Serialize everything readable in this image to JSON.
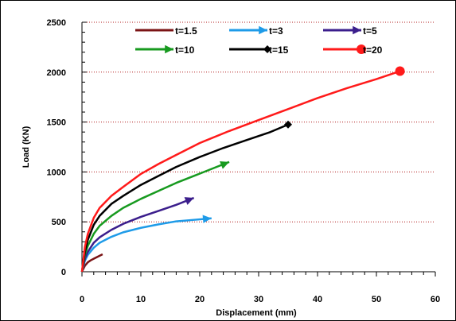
{
  "chart_data": {
    "type": "line",
    "title": "",
    "xlabel": "Displacement (mm)",
    "ylabel": "Load (KN)",
    "xlim": [
      0,
      60
    ],
    "ylim": [
      0,
      2500
    ],
    "x_ticks": [
      "0",
      "10",
      "20",
      "30",
      "40",
      "50",
      "60"
    ],
    "y_ticks": [
      "0",
      "500",
      "1000",
      "1500",
      "2000",
      "2500"
    ],
    "grid": "horizontal dotted",
    "legend_position": "top",
    "series": [
      {
        "name": "t=1.5",
        "color": "#7b1416",
        "marker": "none",
        "x": [
          0,
          0.5,
          1,
          1.5,
          2,
          2.5,
          3,
          3.5
        ],
        "y": [
          0,
          60,
          95,
          115,
          130,
          145,
          160,
          175
        ]
      },
      {
        "name": "t=3",
        "color": "#1e9be8",
        "marker": "arrow",
        "x": [
          0,
          0.5,
          1,
          2,
          3,
          5,
          7,
          10,
          13,
          16,
          19,
          22
        ],
        "y": [
          0,
          110,
          170,
          240,
          290,
          350,
          395,
          440,
          475,
          505,
          520,
          535
        ]
      },
      {
        "name": "t=5",
        "color": "#3b1e8c",
        "marker": "arrow",
        "x": [
          0,
          0.5,
          1,
          2,
          3,
          5,
          7,
          10,
          13,
          16,
          19
        ],
        "y": [
          0,
          130,
          200,
          290,
          345,
          420,
          480,
          550,
          610,
          670,
          740
        ]
      },
      {
        "name": "t=10",
        "color": "#179a1f",
        "marker": "arrow",
        "x": [
          0,
          0.5,
          1,
          2,
          3,
          5,
          7,
          10,
          13,
          16,
          19,
          22,
          25
        ],
        "y": [
          0,
          170,
          260,
          380,
          460,
          560,
          640,
          730,
          810,
          890,
          960,
          1030,
          1100
        ]
      },
      {
        "name": "t=15",
        "color": "#000000",
        "marker": "diamond",
        "x": [
          0,
          0.5,
          1,
          2,
          3,
          5,
          7,
          10,
          13,
          16,
          20,
          24,
          28,
          32,
          35
        ],
        "y": [
          0,
          200,
          320,
          470,
          560,
          680,
          760,
          870,
          960,
          1050,
          1150,
          1240,
          1320,
          1400,
          1475
        ]
      },
      {
        "name": "t=20",
        "color": "#ff1a1a",
        "marker": "circle",
        "x": [
          0,
          0.5,
          1,
          2,
          3,
          5,
          7,
          10,
          13,
          16,
          20,
          25,
          30,
          35,
          40,
          45,
          50,
          54
        ],
        "y": [
          0,
          250,
          380,
          540,
          640,
          760,
          850,
          980,
          1080,
          1170,
          1290,
          1410,
          1520,
          1630,
          1740,
          1840,
          1930,
          2010
        ]
      }
    ]
  }
}
